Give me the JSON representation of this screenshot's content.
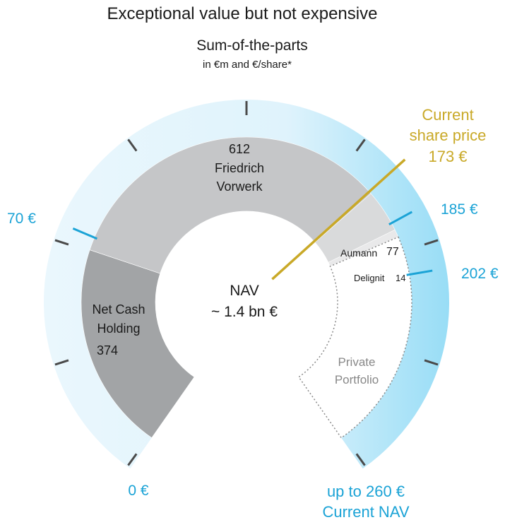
{
  "title": "Exceptional value but not expensive",
  "subtitle": "Sum-of-the-parts",
  "unit_note": "in €m and €/share*",
  "center": {
    "label": "NAV",
    "value": "~ 1.4 bn €"
  },
  "chart_data": {
    "type": "pie",
    "variant": "gauge-donut",
    "unit": "€m",
    "total_label": "~ 1.4 bn €",
    "segments": [
      {
        "name": "Net Cash Holding",
        "label_lines": [
          "Net Cash",
          "Holding"
        ],
        "value": 374,
        "color": "#a2a4a6"
      },
      {
        "name": "Friedrich Vorwerk",
        "label_lines": [
          "Friedrich",
          "Vorwerk"
        ],
        "value": 612,
        "color": "#c5c6c8"
      },
      {
        "name": "Aumann",
        "value": 77,
        "color": "#d9dadb"
      },
      {
        "name": "Delignit",
        "value": 14,
        "color": "#e9e9ea"
      },
      {
        "name": "Private Portfolio",
        "label_lines": [
          "Private",
          "Portfolio"
        ],
        "value": null,
        "color": "#ffffff",
        "border": "dotted"
      }
    ],
    "scale": {
      "unit": "€/share",
      "min": 0,
      "max": 260,
      "min_label": "0 €",
      "max_label_lines": [
        "up to 260 €",
        "Current NAV"
      ],
      "marked_values": [
        {
          "value": 70,
          "label": "70 €"
        },
        {
          "value": 185,
          "label": "185 €"
        },
        {
          "value": 202,
          "label": "202 €"
        }
      ],
      "current_share_price": {
        "value": 173,
        "label_lines": [
          "Current",
          "share price",
          "173 €"
        ]
      }
    },
    "colors": {
      "accent_blue": "#1ba3d6",
      "price_gold": "#c9a928",
      "band_light": "#e6f6fd",
      "band_strong": "#a6e3f8",
      "text": "#1a1a1a",
      "muted": "#888888"
    }
  }
}
